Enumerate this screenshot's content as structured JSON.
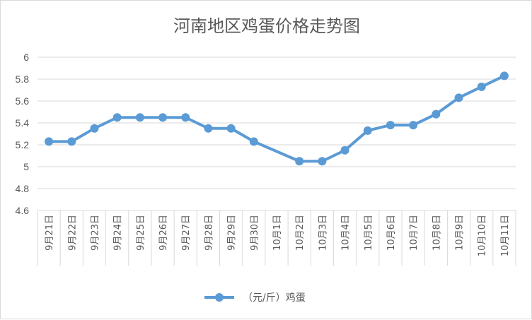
{
  "chart_data": {
    "type": "line",
    "title": "河南地区鸡蛋价格走势图",
    "categories": [
      "9月21日",
      "9月22日",
      "9月23日",
      "9月24日",
      "9月25日",
      "9月26日",
      "9月27日",
      "9月28日",
      "9月29日",
      "9月30日",
      "10月1日",
      "10月2日",
      "10月3日",
      "10月4日",
      "10月5日",
      "10月6日",
      "10月7日",
      "10月8日",
      "10月9日",
      "10月10日",
      "10月11日"
    ],
    "series": [
      {
        "name": "（元/斤）鸡蛋",
        "color": "#5b9bd5",
        "values": [
          5.23,
          5.23,
          5.35,
          5.45,
          5.45,
          5.45,
          5.45,
          5.35,
          5.35,
          5.23,
          null,
          5.05,
          5.05,
          5.15,
          5.33,
          5.38,
          5.38,
          5.48,
          5.63,
          5.73,
          5.83
        ]
      }
    ],
    "ylim": [
      4.6,
      6
    ],
    "yticks": [
      "4.6",
      "4.8",
      "5",
      "5.2",
      "5.4",
      "5.6",
      "5.8",
      "6"
    ],
    "grid": true,
    "legend_position": "bottom"
  }
}
